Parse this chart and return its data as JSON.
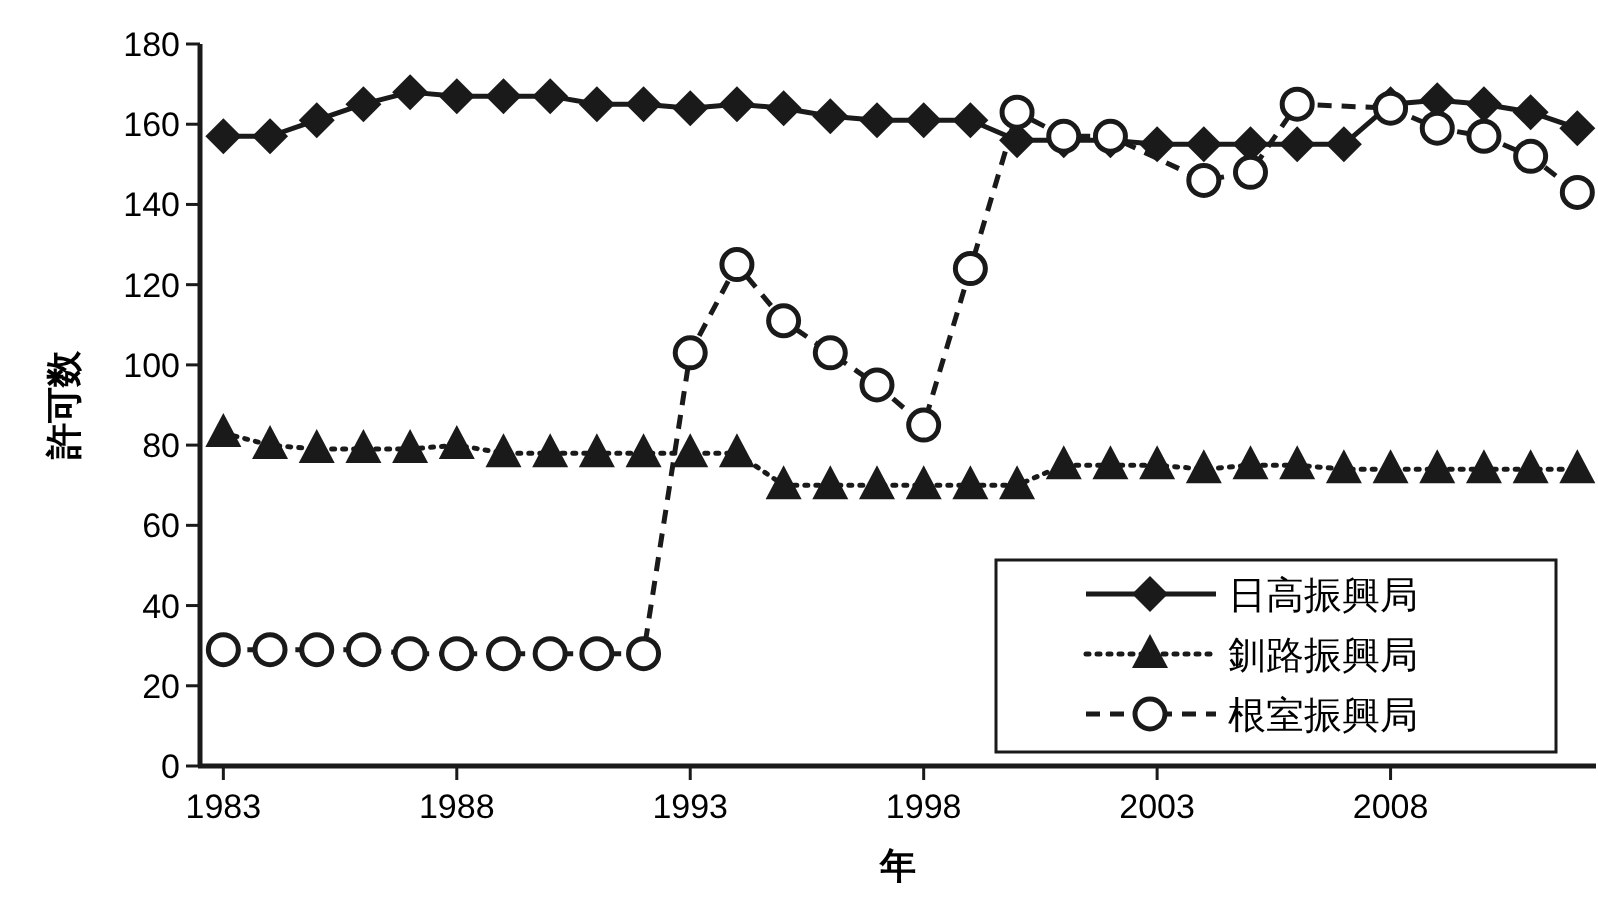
{
  "chart_data": {
    "type": "line",
    "xlabel": "年",
    "ylabel": "許可数",
    "x": [
      1983,
      1984,
      1985,
      1986,
      1987,
      1988,
      1989,
      1990,
      1991,
      1992,
      1993,
      1994,
      1995,
      1996,
      1997,
      1998,
      1999,
      2000,
      2001,
      2002,
      2003,
      2004,
      2005,
      2006,
      2007,
      2008,
      2009,
      2010,
      2011,
      2012
    ],
    "series": [
      {
        "name": "日高振興局",
        "color": "#1a1a1a",
        "marker": "diamond",
        "line_style": "solid",
        "values": [
          157,
          157,
          161,
          165,
          168,
          167,
          167,
          167,
          165,
          165,
          164,
          165,
          164,
          162,
          161,
          161,
          161,
          156,
          156,
          156,
          155,
          155,
          155,
          155,
          155,
          165,
          166,
          165,
          163,
          159
        ]
      },
      {
        "name": "釧路振興局",
        "color": "#1a1a1a",
        "marker": "triangle",
        "line_style": "dotted",
        "values": [
          83,
          80,
          79,
          79,
          79,
          80,
          78,
          78,
          78,
          78,
          78,
          78,
          70,
          70,
          70,
          70,
          70,
          70,
          75,
          75,
          75,
          74,
          75,
          75,
          74,
          74,
          74,
          74,
          74,
          74
        ]
      },
      {
        "name": "根室振興局",
        "color": "#1a1a1a",
        "marker": "circle",
        "line_style": "dashed",
        "values": [
          29,
          29,
          29,
          29,
          28,
          28,
          28,
          28,
          28,
          28,
          103,
          125,
          111,
          103,
          95,
          85,
          124,
          163,
          157,
          157,
          null,
          146,
          148,
          165,
          null,
          164,
          159,
          157,
          152,
          143
        ]
      }
    ],
    "xlim": [
      1982.5,
      2012.4
    ],
    "xticks": [
      1983,
      1988,
      1993,
      1998,
      2003,
      2008
    ],
    "ylim": [
      0,
      180
    ],
    "yticks": [
      0,
      20,
      40,
      60,
      80,
      100,
      120,
      140,
      160,
      180
    ],
    "grid": false,
    "legend": "bottom right"
  }
}
